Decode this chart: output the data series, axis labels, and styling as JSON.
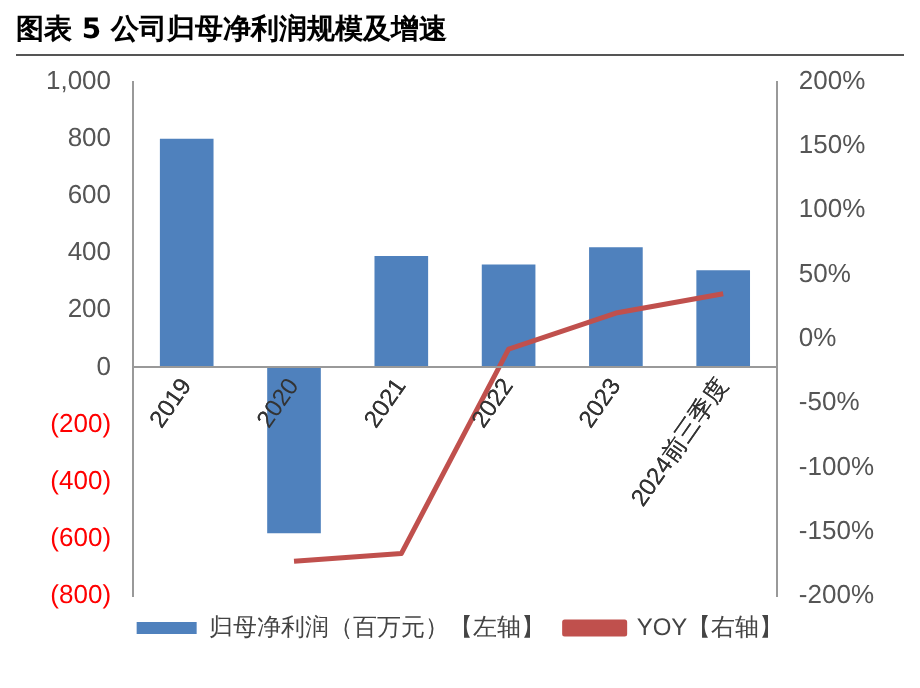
{
  "chart_data": {
    "type": "bar",
    "title": "图表 5 公司归母净利润规模及增速",
    "categories": [
      "2019",
      "2020",
      "2021",
      "2022",
      "2023",
      "2024前三季度"
    ],
    "series": [
      {
        "name": "归母净利润（百万元）【左轴】",
        "color": "#4f81bd",
        "values": [
          800,
          -580,
          390,
          360,
          420,
          340
        ]
      },
      {
        "name": "YOY【右轴】",
        "type": "line",
        "axis": "y2",
        "color": "#c0504d",
        "values": [
          null,
          -173,
          -167,
          -8,
          20,
          35
        ]
      }
    ],
    "ylim": [
      -800,
      1000
    ],
    "yticks": [
      {
        "value": 1000,
        "label": "1,000"
      },
      800,
      600,
      400,
      200,
      0,
      {
        "value": -200,
        "label": "(200)"
      },
      {
        "value": -400,
        "label": "(400)"
      },
      {
        "value": -600,
        "label": "(600)"
      },
      {
        "value": -800,
        "label": "(800)"
      }
    ],
    "y2lim": [
      -200,
      200
    ],
    "y2ticks": [
      {
        "value": 200,
        "label": "200%"
      },
      {
        "value": 150,
        "label": "150%"
      },
      {
        "value": 100,
        "label": "100%"
      },
      {
        "value": 50,
        "label": "50%"
      },
      {
        "value": 0,
        "label": "0%"
      },
      {
        "value": -50,
        "label": "-50%"
      },
      {
        "value": -100,
        "label": "-100%"
      },
      {
        "value": -150,
        "label": "-150%"
      },
      {
        "value": -200,
        "label": "-200%"
      }
    ],
    "grid": false,
    "legend": "bottom",
    "marker": "none"
  }
}
